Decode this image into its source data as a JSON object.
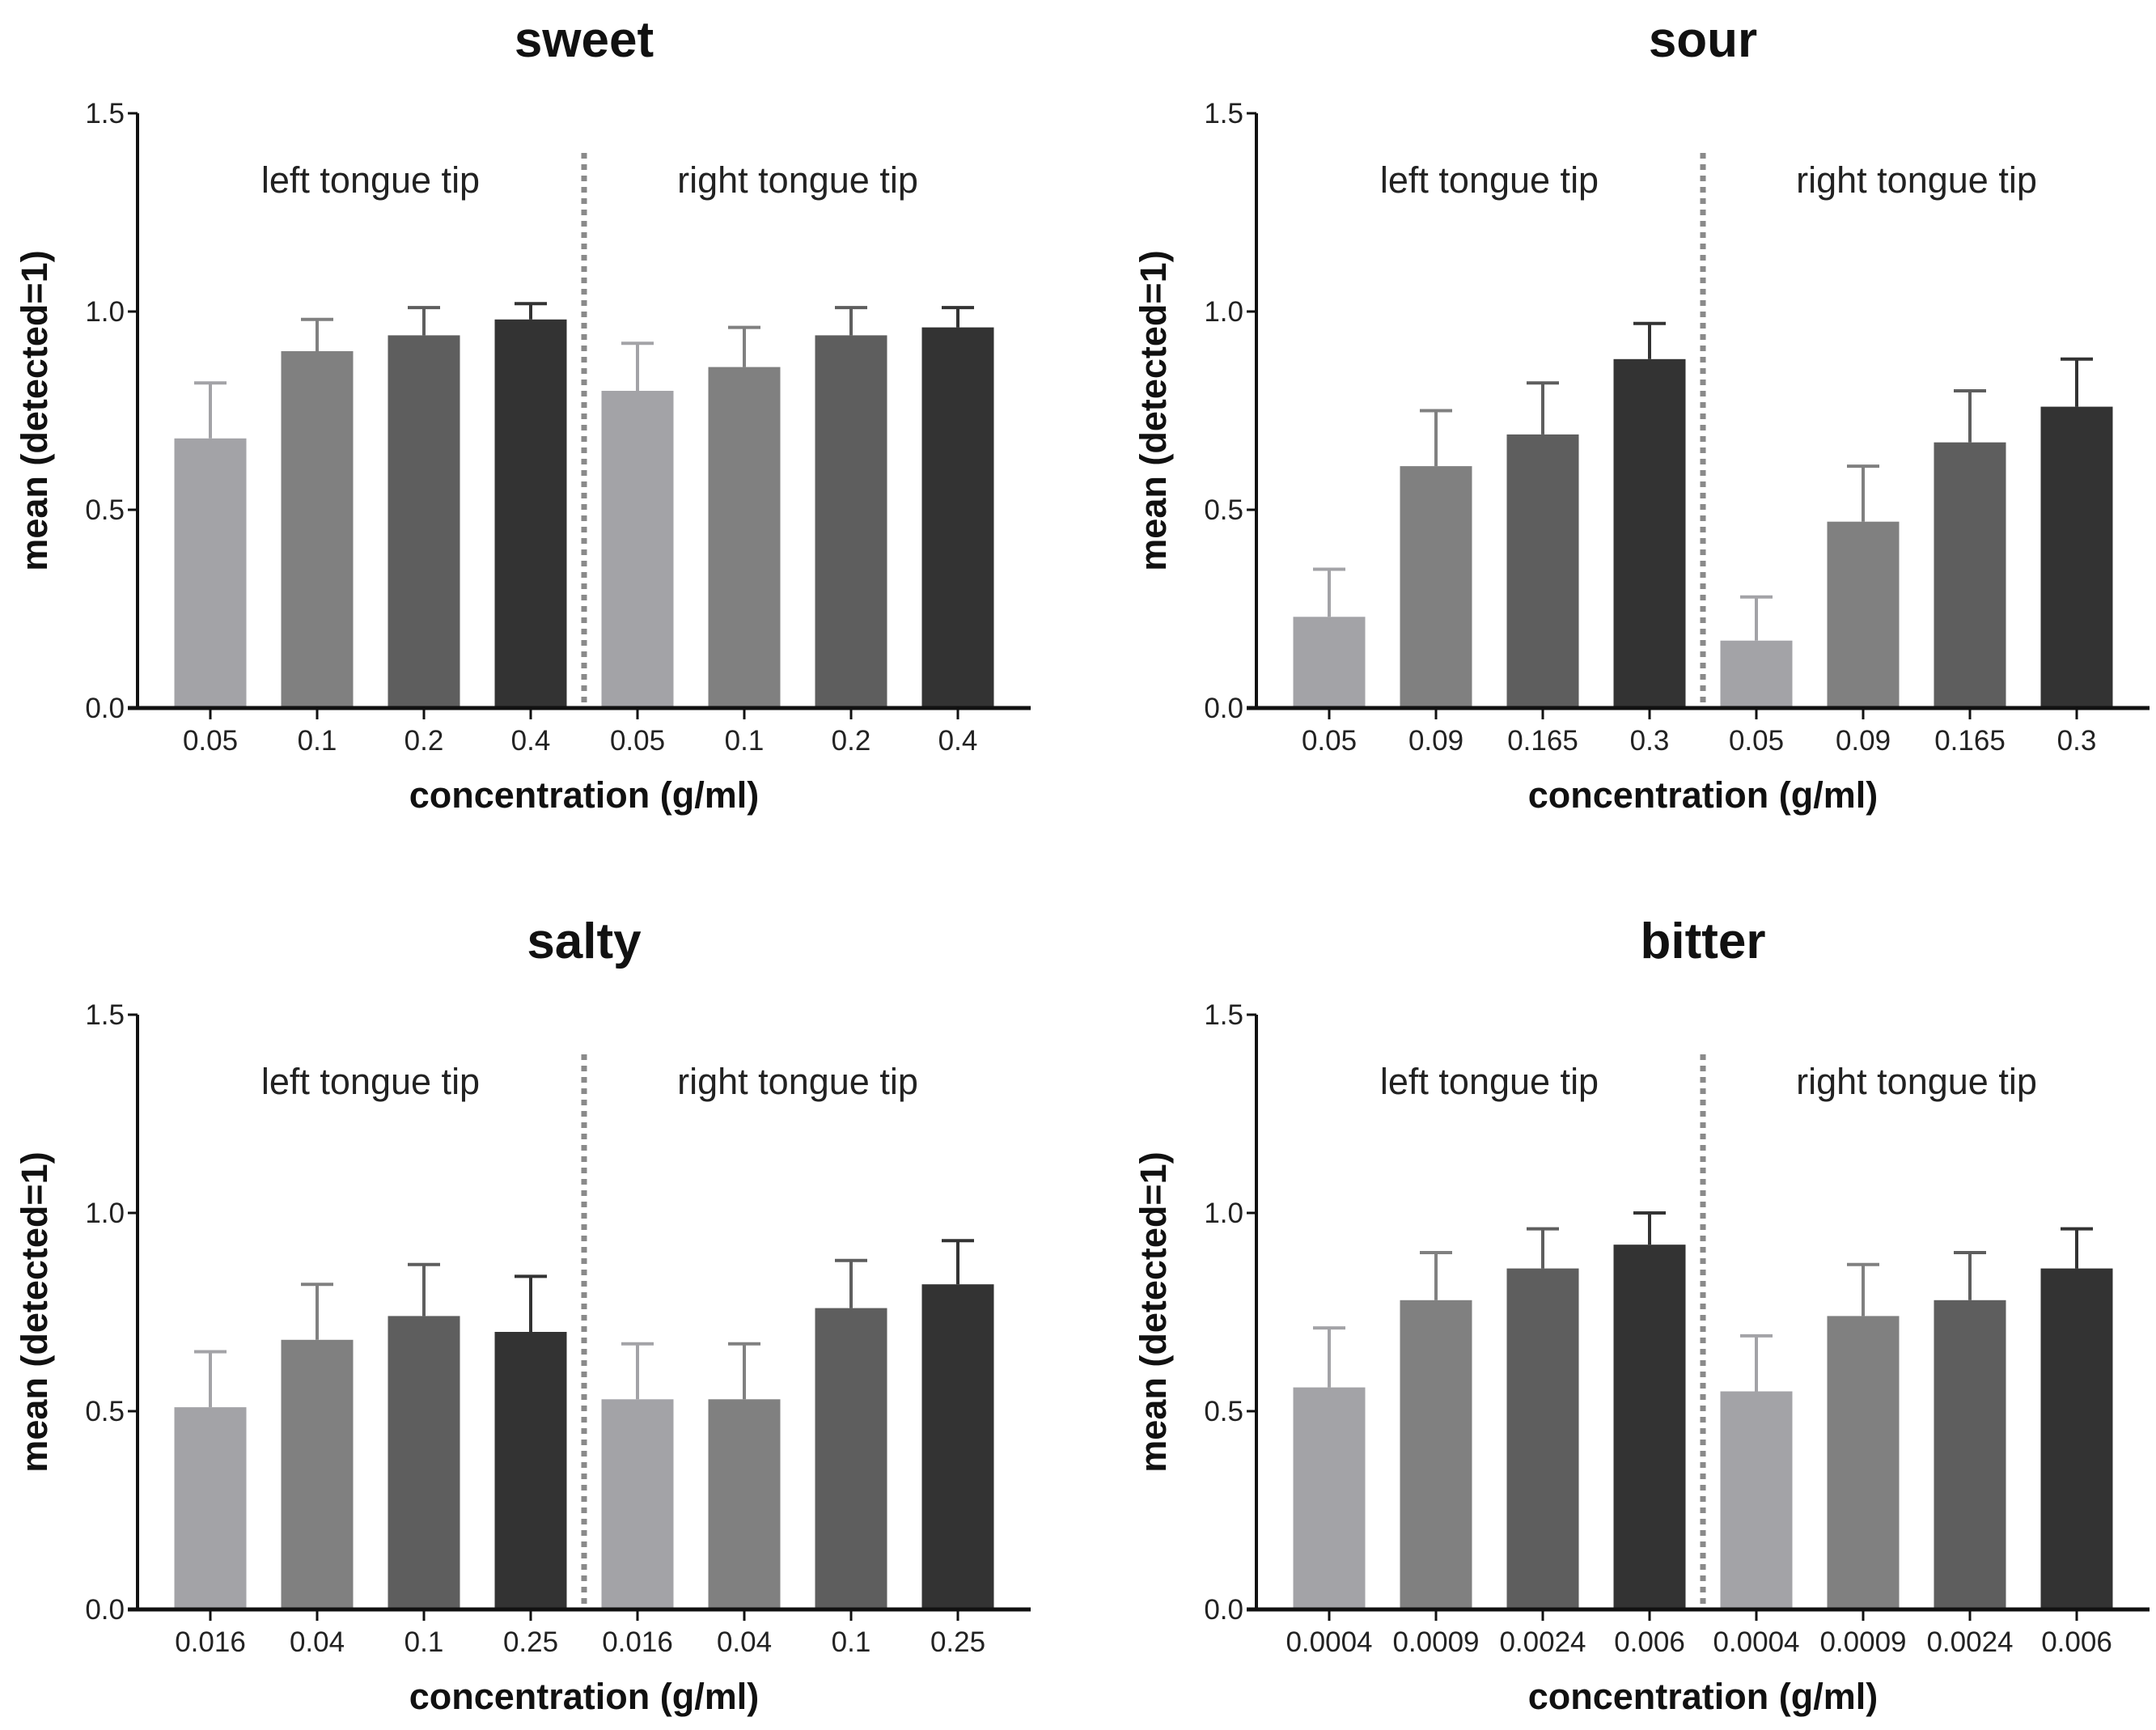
{
  "chart_data": [
    {
      "type": "bar",
      "title": "sweet",
      "xlabel": "concentration (g/ml)",
      "ylabel": "mean (detected=1)",
      "ylim": [
        0,
        1.5
      ],
      "yticks": [
        "0.0",
        "0.5",
        "1.0",
        "1.5"
      ],
      "regions": [
        "left tongue tip",
        "right tongue tip"
      ],
      "categories": [
        "0.05",
        "0.1",
        "0.2",
        "0.4",
        "0.05",
        "0.1",
        "0.2",
        "0.4"
      ],
      "values": [
        0.68,
        0.9,
        0.94,
        0.98,
        0.8,
        0.86,
        0.94,
        0.96
      ],
      "errors": [
        0.14,
        0.08,
        0.07,
        0.04,
        0.12,
        0.1,
        0.07,
        0.05
      ]
    },
    {
      "type": "bar",
      "title": "sour",
      "xlabel": "concentration (g/ml)",
      "ylabel": "mean (detected=1)",
      "ylim": [
        0,
        1.5
      ],
      "yticks": [
        "0.0",
        "0.5",
        "1.0",
        "1.5"
      ],
      "regions": [
        "left tongue tip",
        "right tongue tip"
      ],
      "categories": [
        "0.05",
        "0.09",
        "0.165",
        "0.3",
        "0.05",
        "0.09",
        "0.165",
        "0.3"
      ],
      "values": [
        0.23,
        0.61,
        0.69,
        0.88,
        0.17,
        0.47,
        0.67,
        0.76
      ],
      "errors": [
        0.12,
        0.14,
        0.13,
        0.09,
        0.11,
        0.14,
        0.13,
        0.12
      ]
    },
    {
      "type": "bar",
      "title": "salty",
      "xlabel": "concentration (g/ml)",
      "ylabel": "mean (detected=1)",
      "ylim": [
        0,
        1.5
      ],
      "yticks": [
        "0.0",
        "0.5",
        "1.0",
        "1.5"
      ],
      "regions": [
        "left tongue tip",
        "right tongue tip"
      ],
      "categories": [
        "0.016",
        "0.04",
        "0.1",
        "0.25",
        "0.016",
        "0.04",
        "0.1",
        "0.25"
      ],
      "values": [
        0.51,
        0.68,
        0.74,
        0.7,
        0.53,
        0.53,
        0.76,
        0.82
      ],
      "errors": [
        0.14,
        0.14,
        0.13,
        0.14,
        0.14,
        0.14,
        0.12,
        0.11
      ]
    },
    {
      "type": "bar",
      "title": "bitter",
      "xlabel": "concentration (g/ml)",
      "ylabel": "mean (detected=1)",
      "ylim": [
        0,
        1.5
      ],
      "yticks": [
        "0.0",
        "0.5",
        "1.0",
        "1.5"
      ],
      "regions": [
        "left tongue tip",
        "right tongue tip"
      ],
      "categories": [
        "0.0004",
        "0.0009",
        "0.0024",
        "0.006",
        "0.0004",
        "0.0009",
        "0.0024",
        "0.006"
      ],
      "values": [
        0.56,
        0.78,
        0.86,
        0.92,
        0.55,
        0.74,
        0.78,
        0.86
      ],
      "errors": [
        0.15,
        0.12,
        0.1,
        0.08,
        0.14,
        0.13,
        0.12,
        0.1
      ]
    }
  ],
  "colors": {
    "bars": [
      "#a3a3a7",
      "#808080",
      "#5e5e5e",
      "#333333"
    ],
    "divider": "#8a8a8a",
    "axis": "#111111"
  }
}
